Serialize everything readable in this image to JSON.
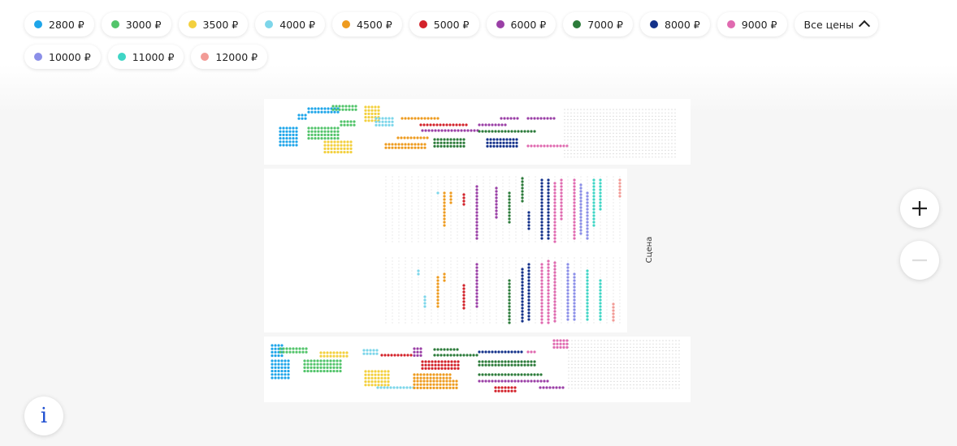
{
  "filters": [
    {
      "label": "2800 ₽",
      "color": "#1ea5e9"
    },
    {
      "label": "3000 ₽",
      "color": "#52c46a"
    },
    {
      "label": "3500 ₽",
      "color": "#f3d03e"
    },
    {
      "label": "4000 ₽",
      "color": "#7dd6ea"
    },
    {
      "label": "4500 ₽",
      "color": "#ee9b1f"
    },
    {
      "label": "5000 ₽",
      "color": "#d3222a"
    },
    {
      "label": "6000 ₽",
      "color": "#9a3fa6"
    },
    {
      "label": "7000 ₽",
      "color": "#2c7b3a"
    },
    {
      "label": "8000 ₽",
      "color": "#13318a"
    },
    {
      "label": "9000 ₽",
      "color": "#e06ab0"
    },
    {
      "label": "10000 ₽",
      "color": "#8b8fe8"
    },
    {
      "label": "11000 ₽",
      "color": "#3fd5c5"
    },
    {
      "label": "12000 ₽",
      "color": "#f29b96"
    }
  ],
  "all_prices": "Все цены",
  "stage": "Сцена",
  "info_button": "i"
}
